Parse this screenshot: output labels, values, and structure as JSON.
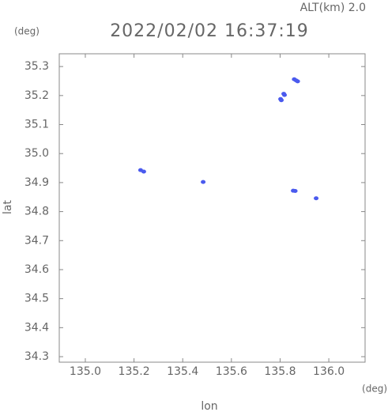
{
  "chart_data": {
    "type": "scatter",
    "title": "2022/02/02 16:37:19",
    "altitude_label": "ALT(km) 2.0",
    "y_unit": "(deg)",
    "x_unit": "(deg)",
    "x_label": "lon",
    "y_label": "lat",
    "color": "#4a5aee",
    "x": [
      135.858,
      135.866,
      135.872,
      135.815,
      135.818,
      135.802,
      135.805,
      135.484,
      135.227,
      135.24,
      135.854,
      135.862,
      135.948
    ],
    "values": [
      35.256,
      35.252,
      35.249,
      35.206,
      35.202,
      35.188,
      35.184,
      34.902,
      34.943,
      34.938,
      34.872,
      34.871,
      34.846
    ],
    "xlim": [
      134.893,
      136.149
    ],
    "ylim": [
      34.281,
      35.344
    ],
    "xticks": [
      {
        "value": 135.0,
        "label": "135.0"
      },
      135.2,
      135.4,
      135.6,
      135.8,
      {
        "value": 136.0,
        "label": "136.0"
      }
    ],
    "yticks": [
      34.3,
      34.4,
      34.5,
      34.6,
      34.7,
      34.8,
      34.9,
      {
        "value": 35.0,
        "label": "35.0"
      },
      35.1,
      35.2,
      35.3
    ]
  }
}
